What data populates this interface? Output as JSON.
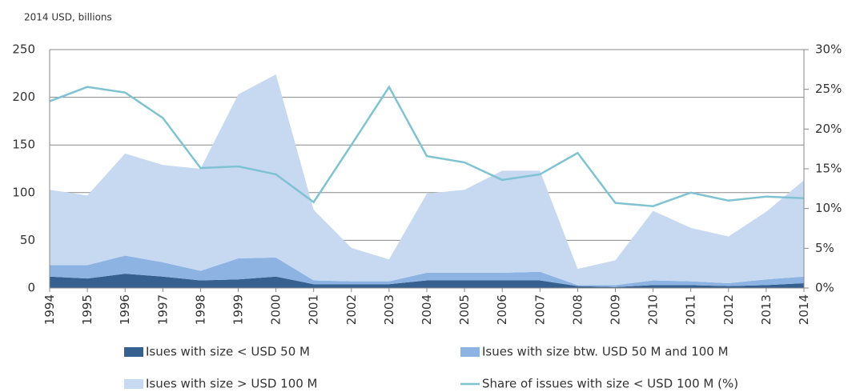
{
  "chart_data": {
    "type": "stacked_area_line",
    "y_axis_title": "2014 USD, billions",
    "categories": [
      "1994",
      "1995",
      "1996",
      "1997",
      "1998",
      "1999",
      "2000",
      "2001",
      "2002",
      "2003",
      "2004",
      "2005",
      "2006",
      "2007",
      "2008",
      "2009",
      "2010",
      "2011",
      "2012",
      "2013",
      "2014"
    ],
    "series": [
      {
        "name": "Isues with size < USD 50 M",
        "color": "#35608f",
        "type": "area",
        "values": [
          12,
          10,
          15,
          12,
          8,
          9,
          12,
          4,
          4,
          4,
          8,
          8,
          8,
          8,
          2,
          1,
          3,
          3,
          2,
          3,
          5
        ]
      },
      {
        "name": "Isues with size btw. USD 50 M and 100 M",
        "color": "#8db3e2",
        "type": "area",
        "values": [
          12,
          14,
          19,
          15,
          10,
          22,
          20,
          4,
          3,
          3,
          8,
          8,
          8,
          9,
          1,
          2,
          5,
          4,
          3,
          6,
          7
        ]
      },
      {
        "name": "Isues with size > USD 100 M",
        "color": "#c6d9f1",
        "type": "area",
        "values": [
          79,
          73,
          107,
          102,
          107,
          172,
          192,
          74,
          35,
          23,
          83,
          87,
          107,
          106,
          17,
          26,
          73,
          56,
          49,
          71,
          101
        ]
      },
      {
        "name": "Share of issues with size < USD 100 M (%)",
        "color": "#7fc3d3",
        "type": "line",
        "axis": "y2",
        "values": [
          23.5,
          25.3,
          24.6,
          21.4,
          15.1,
          15.3,
          14.3,
          10.8,
          18,
          25.3,
          16.6,
          15.8,
          13.6,
          14.3,
          17,
          10.7,
          10.3,
          12,
          11,
          11.5,
          11.3
        ]
      }
    ],
    "ylim": [
      0,
      250
    ],
    "yticks": [
      0,
      50,
      100,
      150,
      200,
      250
    ],
    "y2lim": [
      0,
      30
    ],
    "y2ticks": [
      {
        "value": 0,
        "label": "0%"
      },
      {
        "value": 5,
        "label": "5%"
      },
      {
        "value": 10,
        "label": "10%"
      },
      {
        "value": 15,
        "label": "15%"
      },
      {
        "value": 20,
        "label": "20%"
      },
      {
        "value": 25,
        "label": "25%"
      },
      {
        "value": 30,
        "label": "30%"
      }
    ],
    "grid": true
  }
}
